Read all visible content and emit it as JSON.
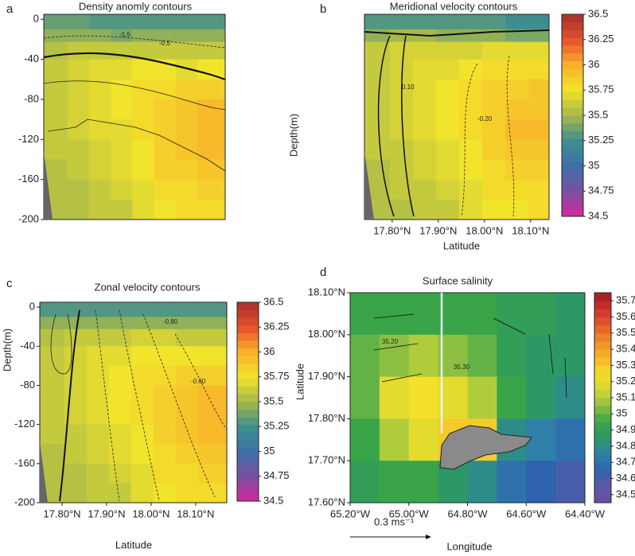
{
  "chart_data": [
    {
      "type": "heatmap",
      "label": "a",
      "title": "Density anomly contours",
      "xlim": [
        17.75,
        18.17
      ],
      "ylim": [
        -200,
        5
      ],
      "yticks": [
        0,
        -40,
        -80,
        -120,
        -160,
        -200
      ],
      "zlim": [
        34.5,
        36.5
      ],
      "colormap": [
        "#d6279b",
        "#7a4fa0",
        "#3f6fa8",
        "#3d8f8f",
        "#a6b84a",
        "#f2e42b",
        "#f9b02a",
        "#e5512c",
        "#a8302c"
      ],
      "x": [
        17.78,
        17.83,
        17.88,
        17.93,
        17.98,
        18.03,
        18.08,
        18.13
      ],
      "y": [
        -5,
        -15,
        -30,
        -50,
        -70,
        -90,
        -110,
        -130,
        -150,
        -170,
        -190
      ],
      "z": [
        [
          35.35,
          35.35,
          35.3,
          35.3,
          35.3,
          35.3,
          35.3,
          35.3
        ],
        [
          35.45,
          35.45,
          35.45,
          35.4,
          35.45,
          35.45,
          35.45,
          35.45
        ],
        [
          35.55,
          35.6,
          35.6,
          35.6,
          35.6,
          35.6,
          35.6,
          35.6
        ],
        [
          35.6,
          35.65,
          35.7,
          35.7,
          35.75,
          35.75,
          35.7,
          35.75
        ],
        [
          35.6,
          35.65,
          35.7,
          35.75,
          35.8,
          35.8,
          35.85,
          35.85
        ],
        [
          35.6,
          35.65,
          35.7,
          35.75,
          35.8,
          35.85,
          35.9,
          35.95
        ],
        [
          35.6,
          35.65,
          35.7,
          35.7,
          35.8,
          35.85,
          35.9,
          35.95
        ],
        [
          35.6,
          35.6,
          35.65,
          35.7,
          35.75,
          35.85,
          35.9,
          35.95
        ],
        [
          35.55,
          35.6,
          35.65,
          35.7,
          35.75,
          35.85,
          35.85,
          35.9
        ],
        [
          35.55,
          35.55,
          35.6,
          35.65,
          35.7,
          35.8,
          35.8,
          35.85
        ],
        [
          35.55,
          35.55,
          35.6,
          35.6,
          35.7,
          35.75,
          35.8,
          35.8
        ]
      ],
      "annotations": [
        "-1.5",
        "-0.5"
      ]
    },
    {
      "type": "heatmap",
      "label": "b",
      "title": "Meridional velocity contours",
      "y_label": "Depth(m)",
      "x_label": "Latitude",
      "xlim": [
        17.74,
        18.14
      ],
      "ylim": [
        -200,
        5
      ],
      "xticks": [
        {
          "value": 17.8,
          "label": "17.80°N"
        },
        {
          "value": 17.9,
          "label": "17.90°N"
        },
        {
          "value": 18.0,
          "label": "18.00°N"
        },
        {
          "value": 18.1,
          "label": "18.10°N"
        }
      ],
      "zlim": [
        34.5,
        36.5
      ],
      "colormap": [
        "#d6279b",
        "#7a4fa0",
        "#3f6fa8",
        "#3d8f8f",
        "#a6b84a",
        "#f2e42b",
        "#f9b02a",
        "#e5512c",
        "#a8302c"
      ],
      "colorbar_ticks": [
        36.5,
        36.25,
        36,
        35.75,
        35.5,
        35.25,
        35,
        34.75,
        34.5
      ],
      "x": [
        17.77,
        17.82,
        17.87,
        17.92,
        17.97,
        18.02,
        18.07,
        18.12
      ],
      "y": [
        -5,
        -15,
        -30,
        -50,
        -70,
        -90,
        -110,
        -130,
        -150,
        -170,
        -190
      ],
      "z": [
        [
          35.3,
          35.3,
          35.3,
          35.3,
          35.3,
          35.3,
          35.25,
          35.25
        ],
        [
          35.45,
          35.5,
          35.5,
          35.45,
          35.45,
          35.45,
          35.4,
          35.4
        ],
        [
          35.6,
          35.65,
          35.65,
          35.65,
          35.65,
          35.7,
          35.7,
          35.7
        ],
        [
          35.6,
          35.65,
          35.7,
          35.7,
          35.75,
          35.8,
          35.8,
          35.8
        ],
        [
          35.6,
          35.65,
          35.7,
          35.75,
          35.8,
          35.85,
          35.85,
          35.9
        ],
        [
          35.6,
          35.65,
          35.7,
          35.75,
          35.8,
          35.85,
          35.9,
          35.9
        ],
        [
          35.6,
          35.65,
          35.7,
          35.75,
          35.8,
          35.85,
          35.95,
          35.95
        ],
        [
          35.6,
          35.6,
          35.65,
          35.7,
          35.75,
          35.85,
          35.9,
          35.9
        ],
        [
          35.55,
          35.6,
          35.65,
          35.7,
          35.75,
          35.8,
          35.85,
          35.85
        ],
        [
          35.55,
          35.6,
          35.6,
          35.65,
          35.7,
          35.8,
          35.8,
          35.8
        ],
        [
          35.55,
          35.55,
          35.6,
          35.6,
          35.7,
          35.75,
          35.75,
          35.8
        ]
      ],
      "annotations": [
        "0.10",
        "-0.20"
      ]
    },
    {
      "type": "heatmap",
      "label": "c",
      "title": "Zonal velocity contours",
      "y_label": "Depth(m)",
      "x_label": "Latitude",
      "xlim": [
        17.75,
        18.17
      ],
      "ylim": [
        -200,
        5
      ],
      "yticks": [
        0,
        -40,
        -80,
        -120,
        -160,
        -200
      ],
      "xticks": [
        {
          "value": 17.8,
          "label": "17.80°N"
        },
        {
          "value": 17.9,
          "label": "17.90°N"
        },
        {
          "value": 18.0,
          "label": "18.00°N"
        },
        {
          "value": 18.1,
          "label": "18.10°N"
        }
      ],
      "zlim": [
        34.5,
        36.5
      ],
      "colormap": [
        "#d6279b",
        "#7a4fa0",
        "#3f6fa8",
        "#3d8f8f",
        "#a6b84a",
        "#f2e42b",
        "#f9b02a",
        "#e5512c",
        "#a8302c"
      ],
      "colorbar_ticks": [
        36.5,
        36.25,
        36,
        35.75,
        35.5,
        35.25,
        35,
        34.75,
        34.5
      ],
      "x": [
        17.78,
        17.83,
        17.88,
        17.93,
        17.98,
        18.03,
        18.08,
        18.13
      ],
      "y": [
        -5,
        -15,
        -30,
        -50,
        -70,
        -90,
        -110,
        -130,
        -150,
        -170,
        -190
      ],
      "z": [
        [
          35.3,
          35.3,
          35.3,
          35.3,
          35.3,
          35.3,
          35.3,
          35.3
        ],
        [
          35.45,
          35.45,
          35.45,
          35.45,
          35.45,
          35.45,
          35.45,
          35.45
        ],
        [
          35.55,
          35.6,
          35.6,
          35.6,
          35.65,
          35.65,
          35.6,
          35.6
        ],
        [
          35.6,
          35.65,
          35.7,
          35.7,
          35.75,
          35.75,
          35.75,
          35.75
        ],
        [
          35.6,
          35.65,
          35.7,
          35.75,
          35.8,
          35.8,
          35.85,
          35.85
        ],
        [
          35.6,
          35.65,
          35.7,
          35.75,
          35.8,
          35.85,
          35.9,
          35.95
        ],
        [
          35.6,
          35.65,
          35.7,
          35.75,
          35.8,
          35.85,
          35.9,
          35.95
        ],
        [
          35.6,
          35.6,
          35.65,
          35.7,
          35.75,
          35.85,
          35.9,
          35.95
        ],
        [
          35.55,
          35.6,
          35.65,
          35.7,
          35.75,
          35.8,
          35.85,
          35.9
        ],
        [
          35.55,
          35.55,
          35.6,
          35.65,
          35.7,
          35.8,
          35.8,
          35.85
        ],
        [
          35.55,
          35.55,
          35.6,
          35.6,
          35.7,
          35.75,
          35.8,
          35.8
        ]
      ],
      "annotations": [
        "-0.80",
        "-0.60"
      ]
    },
    {
      "type": "heatmap",
      "label": "d",
      "title": "Surface salinity",
      "y_label": "Latitude",
      "x_label": "Longitude",
      "scale_label": "0.3 ms⁻¹",
      "xlim": [
        -65.2,
        -64.4
      ],
      "ylim": [
        17.6,
        18.1
      ],
      "xticks": [
        {
          "value": -65.2,
          "label": "65.20°W"
        },
        {
          "value": -65.0,
          "label": "65.00°W"
        },
        {
          "value": -64.8,
          "label": "64.80°W"
        },
        {
          "value": -64.6,
          "label": "64.60°W"
        },
        {
          "value": -64.4,
          "label": "64.40°W"
        }
      ],
      "yticks": [
        {
          "value": 18.1,
          "label": "18.10°N"
        },
        {
          "value": 18.0,
          "label": "18.00°N"
        },
        {
          "value": 17.9,
          "label": "17.90°N"
        },
        {
          "value": 17.8,
          "label": "17.80°N"
        },
        {
          "value": 17.7,
          "label": "17.70°N"
        },
        {
          "value": 17.6,
          "label": "17.60°N"
        }
      ],
      "zlim": [
        34.45,
        35.75
      ],
      "colormap": [
        "#6b4a9e",
        "#5e5aa8",
        "#2f62ae",
        "#2f80a8",
        "#2c9868",
        "#3aa548",
        "#8cbf42",
        "#d2d834",
        "#f4df2b",
        "#f6b52a",
        "#f28b2a",
        "#e65a2b",
        "#cf2f2c",
        "#9a1e25"
      ],
      "colorbar_ticks": [
        35.7,
        35.6,
        35.5,
        35.4,
        35.3,
        35.2,
        35.1,
        35,
        34.9,
        34.8,
        34.7,
        34.6,
        34.5
      ],
      "x": [
        -65.15,
        -65.05,
        -64.95,
        -64.85,
        -64.75,
        -64.65,
        -64.55,
        -64.45
      ],
      "y": [
        18.05,
        17.95,
        17.85,
        17.75,
        17.65
      ],
      "z": [
        [
          34.95,
          34.95,
          34.95,
          34.95,
          34.95,
          34.9,
          34.9,
          34.85
        ],
        [
          35.0,
          35.05,
          35.1,
          35.05,
          35.0,
          34.9,
          34.85,
          34.85
        ],
        [
          35.0,
          35.2,
          35.25,
          35.2,
          35.1,
          34.95,
          34.85,
          34.8
        ],
        [
          34.95,
          35.1,
          35.2,
          35.3,
          35.3,
          34.8,
          34.75,
          34.7
        ],
        [
          34.9,
          34.95,
          34.95,
          34.85,
          34.8,
          34.7,
          34.65,
          34.6
        ]
      ],
      "annotations": [
        "35.20",
        "35.30"
      ]
    }
  ]
}
